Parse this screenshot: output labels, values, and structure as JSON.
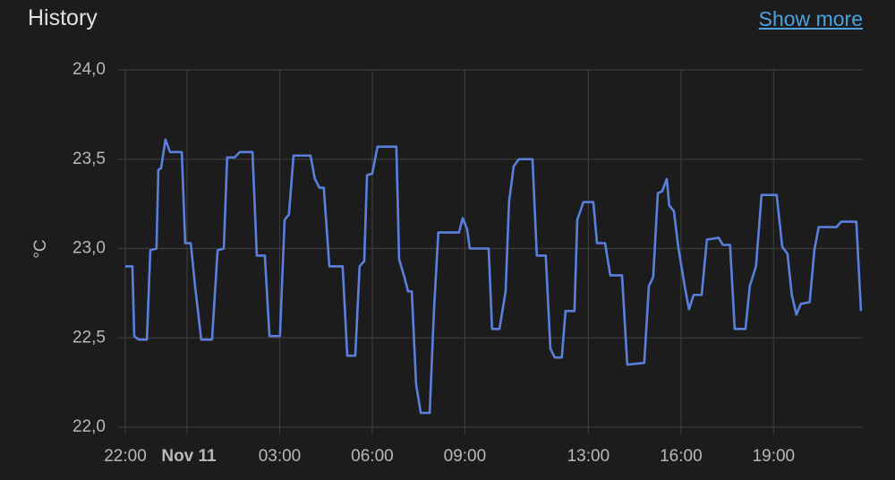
{
  "header": {
    "action": "Show more"
  },
  "chart_data": {
    "type": "line",
    "title": "History",
    "y_label": "°C",
    "color": "#5a7fdc",
    "grid": true,
    "xlim": [
      -2,
      21.86
    ],
    "xticks": [
      {
        "value": -2,
        "label": "22:00"
      },
      {
        "value": 0,
        "label": "Nov 11"
      },
      {
        "value": 3,
        "label": "03:00"
      },
      {
        "value": 6,
        "label": "06:00"
      },
      {
        "value": 9,
        "label": "09:00"
      },
      {
        "value": 13,
        "label": "13:00"
      },
      {
        "value": 16,
        "label": "16:00"
      },
      {
        "value": 19,
        "label": "19:00"
      }
    ],
    "ylim": [
      22,
      24
    ],
    "yticks": [
      {
        "value": 22,
        "label": "22,0"
      },
      {
        "value": 22.5,
        "label": "22,5"
      },
      {
        "value": 23,
        "label": "23,0"
      },
      {
        "value": 23.5,
        "label": "23,5"
      },
      {
        "value": 24,
        "label": "24,0"
      }
    ],
    "x": [
      -2,
      -1.77,
      -1.71,
      -1.57,
      -1.3,
      -1.19,
      -0.99,
      -0.93,
      -0.84,
      -0.7,
      -0.55,
      -0.17,
      -0.06,
      0.12,
      0.26,
      0.46,
      0.81,
      0.99,
      1.19,
      1.3,
      1.54,
      1.71,
      2.12,
      2.26,
      2.52,
      2.67,
      3.01,
      3.16,
      3.3,
      3.45,
      4.0,
      4.14,
      4.29,
      4.43,
      4.61,
      5.04,
      5.19,
      5.45,
      5.59,
      5.74,
      5.83,
      6.0,
      6.17,
      6.78,
      6.87,
      7.04,
      7.16,
      7.28,
      7.42,
      7.57,
      7.86,
      8.0,
      8.14,
      8.81,
      8.93,
      9.07,
      9.16,
      9.77,
      9.88,
      10.12,
      10.32,
      10.43,
      10.58,
      10.75,
      11.19,
      11.33,
      11.62,
      11.77,
      11.91,
      12.14,
      12.26,
      12.55,
      12.64,
      12.84,
      13.16,
      13.28,
      13.54,
      13.71,
      14.09,
      14.26,
      14.81,
      14.96,
      15.1,
      15.25,
      15.39,
      15.54,
      15.62,
      15.77,
      15.91,
      16.12,
      16.26,
      16.41,
      16.67,
      16.84,
      17.22,
      17.36,
      17.59,
      17.74,
      18.09,
      18.23,
      18.43,
      18.61,
      19.1,
      19.28,
      19.45,
      19.59,
      19.74,
      19.88,
      20.17,
      20.32,
      20.46,
      21.04,
      21.19,
      21.68,
      21.83
    ],
    "values": [
      22.9,
      22.9,
      22.51,
      22.49,
      22.49,
      22.99,
      23.0,
      23.44,
      23.45,
      23.61,
      23.54,
      23.54,
      23.03,
      23.03,
      22.79,
      22.49,
      22.49,
      22.99,
      23.0,
      23.51,
      23.51,
      23.54,
      23.54,
      22.96,
      22.96,
      22.51,
      22.51,
      23.16,
      23.19,
      23.52,
      23.52,
      23.39,
      23.34,
      23.34,
      22.9,
      22.9,
      22.4,
      22.4,
      22.9,
      22.93,
      23.41,
      23.42,
      23.57,
      23.57,
      22.94,
      22.84,
      22.76,
      22.76,
      22.24,
      22.08,
      22.08,
      22.66,
      23.09,
      23.09,
      23.17,
      23.11,
      23.0,
      23.0,
      22.55,
      22.55,
      22.76,
      23.26,
      23.46,
      23.5,
      23.5,
      22.96,
      22.96,
      22.44,
      22.39,
      22.39,
      22.65,
      22.65,
      23.16,
      23.26,
      23.26,
      23.03,
      23.03,
      22.85,
      22.85,
      22.35,
      22.36,
      22.79,
      22.84,
      23.31,
      23.32,
      23.39,
      23.24,
      23.21,
      23.01,
      22.79,
      22.66,
      22.74,
      22.74,
      23.05,
      23.06,
      23.02,
      23.02,
      22.55,
      22.55,
      22.79,
      22.9,
      23.3,
      23.3,
      23.01,
      22.97,
      22.74,
      22.63,
      22.69,
      22.7,
      22.99,
      23.12,
      23.12,
      23.15,
      23.15,
      22.65
    ]
  }
}
